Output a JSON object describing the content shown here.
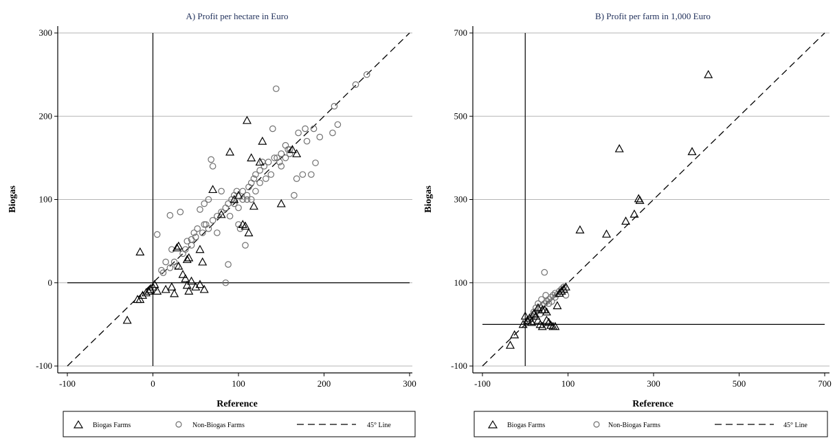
{
  "chart_data": [
    {
      "type": "scatter",
      "title": "A) Profit per hectare in Euro",
      "xlabel": "Reference",
      "ylabel": "Biogas",
      "xlim": [
        -100,
        300
      ],
      "ylim": [
        -100,
        300
      ],
      "xticks": [
        "-100",
        "0",
        "100",
        "200",
        "300"
      ],
      "yticks": [
        "-100",
        "0",
        "100",
        "200",
        "300"
      ],
      "grid": true,
      "legend_position": "bottom",
      "reference_lines": {
        "vertical_x": 0,
        "horizontal_y": 0
      },
      "series": [
        {
          "name": "Biogas Farms",
          "marker": "triangle",
          "points": [
            [
              -30,
              -45
            ],
            [
              -18,
              -20
            ],
            [
              -15,
              -20
            ],
            [
              -12,
              -15
            ],
            [
              -8,
              -12
            ],
            [
              -5,
              -10
            ],
            [
              -3,
              -8
            ],
            [
              0,
              -5
            ],
            [
              2,
              -2
            ],
            [
              5,
              -10
            ],
            [
              -15,
              37
            ],
            [
              15,
              -8
            ],
            [
              22,
              -5
            ],
            [
              25,
              -13
            ],
            [
              28,
              42
            ],
            [
              30,
              44
            ],
            [
              35,
              10
            ],
            [
              38,
              5
            ],
            [
              40,
              -3
            ],
            [
              42,
              -10
            ],
            [
              45,
              2
            ],
            [
              50,
              -5
            ],
            [
              55,
              -2
            ],
            [
              58,
              25
            ],
            [
              60,
              -8
            ],
            [
              55,
              40
            ],
            [
              70,
              112
            ],
            [
              90,
              157
            ],
            [
              105,
              70
            ],
            [
              108,
              68
            ],
            [
              112,
              60
            ],
            [
              110,
              195
            ],
            [
              115,
              150
            ],
            [
              118,
              92
            ],
            [
              125,
              145
            ],
            [
              128,
              170
            ],
            [
              150,
              95
            ],
            [
              163,
              160
            ],
            [
              168,
              155
            ],
            [
              40,
              28
            ],
            [
              30,
              20
            ],
            [
              42,
              30
            ],
            [
              80,
              82
            ],
            [
              95,
              100
            ],
            [
              100,
              105
            ]
          ]
        },
        {
          "name": "Non-Biogas Farms",
          "marker": "circle",
          "points": [
            [
              5,
              58
            ],
            [
              10,
              15
            ],
            [
              15,
              25
            ],
            [
              20,
              81
            ],
            [
              22,
              40
            ],
            [
              28,
              20
            ],
            [
              32,
              85
            ],
            [
              40,
              50
            ],
            [
              45,
              52
            ],
            [
              50,
              55
            ],
            [
              55,
              88
            ],
            [
              60,
              95
            ],
            [
              65,
              100
            ],
            [
              68,
              148
            ],
            [
              70,
              140
            ],
            [
              60,
              70
            ],
            [
              65,
              65
            ],
            [
              70,
              75
            ],
            [
              75,
              80
            ],
            [
              80,
              85
            ],
            [
              85,
              90
            ],
            [
              88,
              95
            ],
            [
              90,
              80
            ],
            [
              92,
              100
            ],
            [
              95,
              105
            ],
            [
              98,
              110
            ],
            [
              100,
              70
            ],
            [
              102,
              65
            ],
            [
              105,
              110
            ],
            [
              108,
              45
            ],
            [
              110,
              100
            ],
            [
              112,
              115
            ],
            [
              115,
              120
            ],
            [
              118,
              125
            ],
            [
              120,
              130
            ],
            [
              125,
              135
            ],
            [
              130,
              140
            ],
            [
              135,
              145
            ],
            [
              138,
              130
            ],
            [
              140,
              185
            ],
            [
              142,
              150
            ],
            [
              144,
              233
            ],
            [
              148,
              145
            ],
            [
              150,
              140
            ],
            [
              155,
              165
            ],
            [
              158,
              160
            ],
            [
              160,
              160
            ],
            [
              165,
              105
            ],
            [
              168,
              125
            ],
            [
              170,
              180
            ],
            [
              175,
              130
            ],
            [
              178,
              185
            ],
            [
              180,
              170
            ],
            [
              185,
              130
            ],
            [
              188,
              185
            ],
            [
              190,
              144
            ],
            [
              195,
              175
            ],
            [
              210,
              180
            ],
            [
              212,
              212
            ],
            [
              216,
              190
            ],
            [
              237,
              238
            ],
            [
              250,
              250
            ],
            [
              88,
              22
            ],
            [
              85,
              0
            ],
            [
              75,
              60
            ],
            [
              80,
              110
            ],
            [
              52,
              65
            ],
            [
              58,
              60
            ],
            [
              62,
              70
            ],
            [
              95,
              95
            ],
            [
              100,
              90
            ],
            [
              105,
              100
            ],
            [
              110,
              105
            ],
            [
              115,
              100
            ],
            [
              120,
              110
            ],
            [
              125,
              120
            ],
            [
              128,
              145
            ],
            [
              132,
              125
            ],
            [
              145,
              150
            ],
            [
              150,
              155
            ],
            [
              155,
              150
            ],
            [
              160,
              155
            ],
            [
              35,
              35
            ],
            [
              25,
              25
            ],
            [
              20,
              18
            ],
            [
              12,
              12
            ],
            [
              45,
              45
            ],
            [
              48,
              60
            ],
            [
              38,
              40
            ]
          ]
        },
        {
          "name": "45° Line",
          "marker": "dashed-line",
          "points": [
            [
              -100,
              -100
            ],
            [
              300,
              300
            ]
          ]
        }
      ]
    },
    {
      "type": "scatter",
      "title": "B) Profit per farm in 1,000 Euro",
      "xlabel": "Reference",
      "ylabel": "Biogas",
      "xlim": [
        -100,
        700
      ],
      "ylim": [
        -100,
        700
      ],
      "xticks": [
        "-100",
        "100",
        "300",
        "500",
        "700"
      ],
      "yticks": [
        "-100",
        "100",
        "300",
        "500",
        "700"
      ],
      "grid": true,
      "legend_position": "bottom",
      "reference_lines": {
        "vertical_x": 0,
        "horizontal_y": 0
      },
      "series": [
        {
          "name": "Biogas Farms",
          "marker": "triangle",
          "points": [
            [
              -35,
              -50
            ],
            [
              -25,
              -25
            ],
            [
              -5,
              0
            ],
            [
              0,
              20
            ],
            [
              5,
              10
            ],
            [
              10,
              15
            ],
            [
              15,
              5
            ],
            [
              20,
              25
            ],
            [
              25,
              20
            ],
            [
              30,
              10
            ],
            [
              35,
              0
            ],
            [
              40,
              -5
            ],
            [
              45,
              35
            ],
            [
              50,
              10
            ],
            [
              55,
              5
            ],
            [
              60,
              -2
            ],
            [
              65,
              -5
            ],
            [
              70,
              -5
            ],
            [
              75,
              45
            ],
            [
              80,
              75
            ],
            [
              85,
              80
            ],
            [
              90,
              85
            ],
            [
              95,
              90
            ],
            [
              30,
              40
            ],
            [
              40,
              35
            ],
            [
              50,
              30
            ],
            [
              128,
              227
            ],
            [
              190,
              217
            ],
            [
              220,
              422
            ],
            [
              235,
              248
            ],
            [
              255,
              265
            ],
            [
              265,
              302
            ],
            [
              268,
              298
            ],
            [
              390,
              415
            ],
            [
              428,
              600
            ]
          ]
        },
        {
          "name": "Non-Biogas Farms",
          "marker": "circle",
          "points": [
            [
              5,
              5
            ],
            [
              10,
              10
            ],
            [
              15,
              20
            ],
            [
              20,
              25
            ],
            [
              25,
              30
            ],
            [
              30,
              35
            ],
            [
              35,
              40
            ],
            [
              40,
              45
            ],
            [
              45,
              50
            ],
            [
              50,
              55
            ],
            [
              55,
              60
            ],
            [
              60,
              65
            ],
            [
              65,
              70
            ],
            [
              70,
              75
            ],
            [
              75,
              72
            ],
            [
              80,
              80
            ],
            [
              85,
              85
            ],
            [
              90,
              90
            ],
            [
              95,
              70
            ],
            [
              45,
              125
            ],
            [
              38,
              60
            ],
            [
              48,
              70
            ],
            [
              55,
              50
            ],
            [
              62,
              55
            ],
            [
              30,
              50
            ],
            [
              20,
              30
            ],
            [
              25,
              40
            ],
            [
              15,
              15
            ],
            [
              35,
              25
            ],
            [
              70,
              65
            ]
          ]
        },
        {
          "name": "45° Line",
          "marker": "dashed-line",
          "points": [
            [
              -100,
              -100
            ],
            [
              700,
              700
            ]
          ]
        }
      ]
    }
  ],
  "colors": {
    "title_text": "#1f2f5a",
    "grid": "#b4b4b4",
    "biogas_marker": "#000000",
    "nonbiogas_marker": "#707070",
    "axis": "#000000"
  }
}
